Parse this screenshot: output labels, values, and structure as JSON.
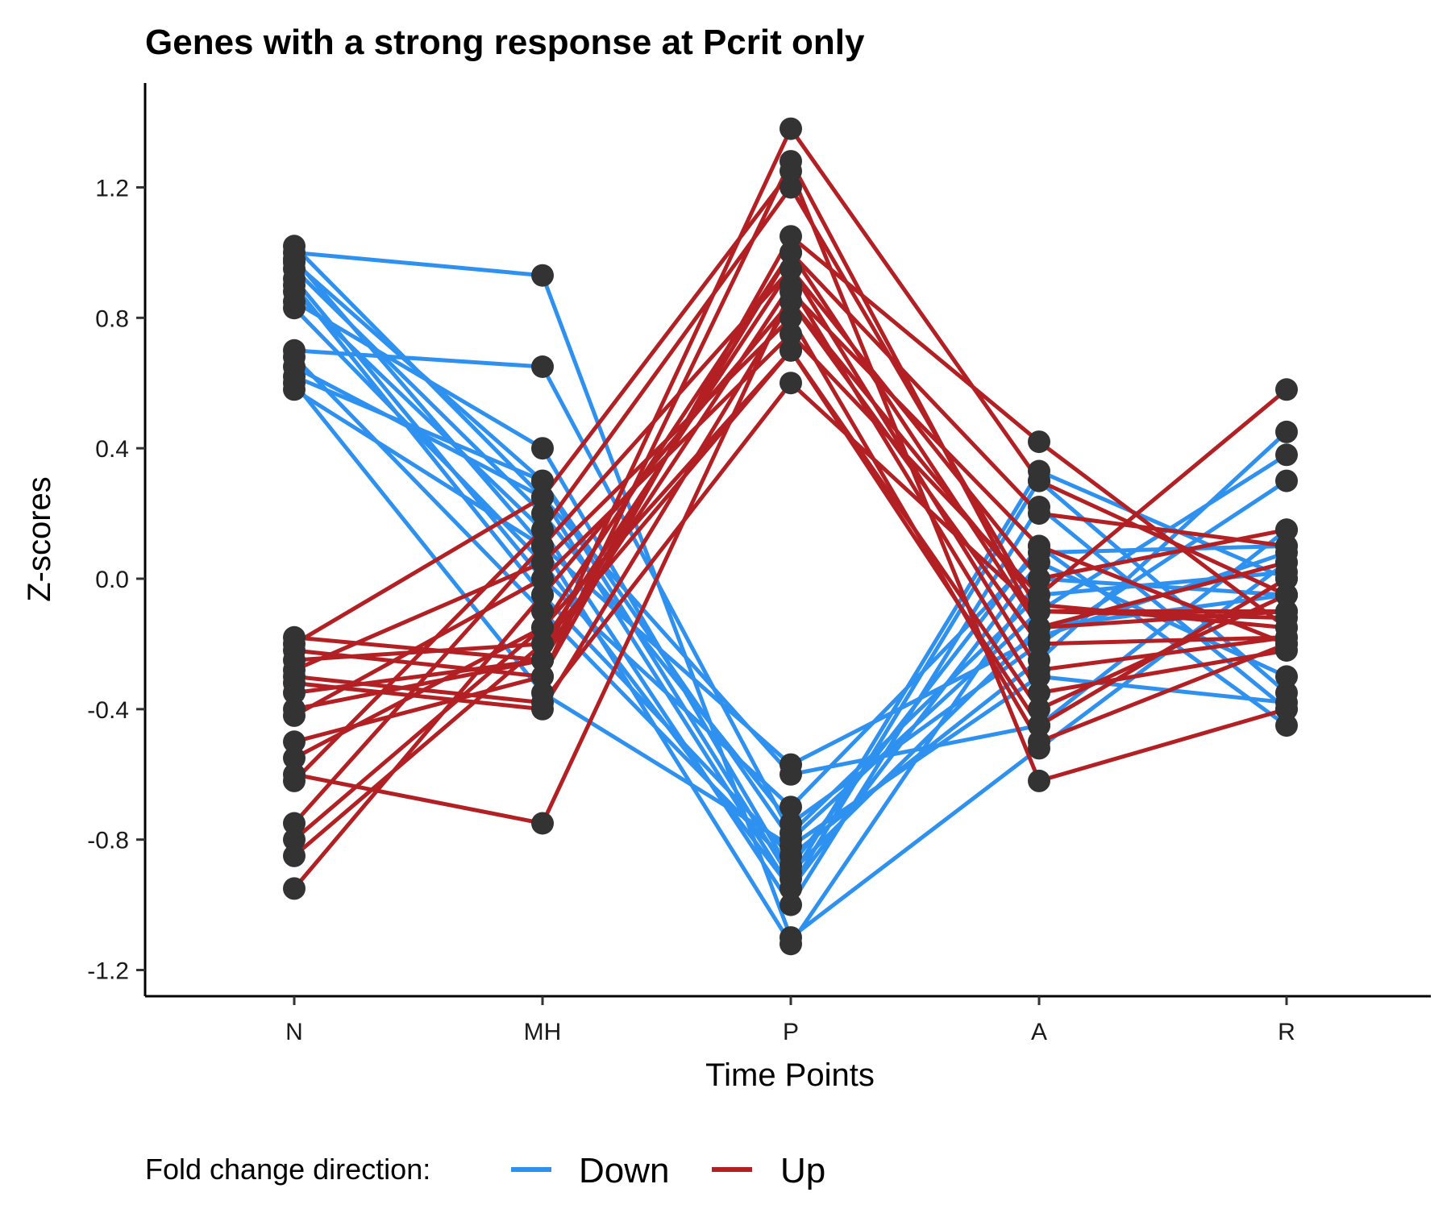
{
  "chart_data": {
    "type": "line",
    "title": "Genes with a strong response at Pcrit only",
    "xlabel": "Time Points",
    "ylabel": "Z-scores",
    "categories": [
      "N",
      "MH",
      "P",
      "A",
      "R"
    ],
    "ylim": [
      -1.3,
      1.5
    ],
    "yticks": [
      -1.2,
      -0.8,
      -0.4,
      0.0,
      0.4,
      0.8,
      1.2
    ],
    "ytick_labels": [
      "-1.2",
      "-0.8",
      "-0.4",
      "0.0",
      "0.4",
      "0.8",
      "1.2"
    ],
    "grid": false,
    "legend": {
      "title": "Fold change direction:",
      "position": "bottom",
      "entries": [
        {
          "name": "Down",
          "color": "#2E91F0"
        },
        {
          "name": "Up",
          "color": "#B22024"
        }
      ]
    },
    "point_color": "#333333",
    "series_groups": [
      {
        "name": "Down",
        "color": "#2E91F0",
        "lines": [
          [
            1.02,
            0.25,
            -0.95,
            0.3,
            -0.35
          ],
          [
            1.0,
            0.93,
            -1.1,
            -0.52,
            0.05
          ],
          [
            0.98,
            0.1,
            -1.12,
            0.0,
            -0.05
          ],
          [
            0.97,
            0.3,
            -0.8,
            -0.1,
            0.38
          ],
          [
            0.95,
            0.2,
            -0.75,
            -0.2,
            0.3
          ],
          [
            0.92,
            0.0,
            -0.7,
            0.08,
            0.1
          ],
          [
            0.9,
            -0.05,
            -0.85,
            -0.25,
            0.45
          ],
          [
            0.88,
            0.15,
            -1.0,
            0.22,
            -0.4
          ],
          [
            0.85,
            0.4,
            -0.9,
            -0.15,
            -0.05
          ],
          [
            0.83,
            0.05,
            -0.95,
            0.05,
            -0.3
          ],
          [
            0.7,
            0.65,
            -0.78,
            -0.05,
            0.02
          ],
          [
            0.68,
            -0.1,
            -0.88,
            0.1,
            -0.45
          ],
          [
            0.65,
            0.25,
            -0.6,
            -0.45,
            0.15
          ],
          [
            0.62,
            0.3,
            -0.92,
            0.33,
            0.0
          ],
          [
            0.6,
            -0.35,
            -0.82,
            -0.3,
            -0.38
          ],
          [
            0.58,
            0.1,
            -0.57,
            -0.18,
            0.08
          ]
        ]
      },
      {
        "name": "Up",
        "color": "#B22024",
        "lines": [
          [
            -0.18,
            -0.25,
            1.38,
            0.3,
            -0.05
          ],
          [
            -0.2,
            0.25,
            1.25,
            -0.62,
            -0.4
          ],
          [
            -0.22,
            -0.3,
            1.05,
            0.42,
            -0.15
          ],
          [
            -0.25,
            -0.2,
            0.95,
            0.0,
            0.15
          ],
          [
            -0.28,
            0.05,
            0.8,
            -0.5,
            -0.2
          ],
          [
            -0.3,
            -0.38,
            0.6,
            -0.1,
            -0.1
          ],
          [
            -0.32,
            -0.4,
            0.85,
            -0.2,
            -0.18
          ],
          [
            -0.35,
            -0.25,
            1.0,
            0.2,
            0.1
          ],
          [
            -0.4,
            -0.25,
            0.9,
            -0.35,
            -0.22
          ],
          [
            -0.42,
            0.0,
            0.75,
            -0.05,
            0.58
          ],
          [
            -0.5,
            -0.3,
            1.28,
            -0.15,
            0.05
          ],
          [
            -0.55,
            -0.15,
            0.7,
            -0.4,
            -0.05
          ],
          [
            -0.6,
            -0.75,
            0.88,
            0.1,
            -0.2
          ],
          [
            -0.62,
            0.15,
            1.2,
            -0.1,
            -0.12
          ],
          [
            -0.75,
            0.1,
            0.95,
            -0.28,
            -0.18
          ],
          [
            -0.8,
            -0.15,
            1.0,
            -0.15,
            -0.1
          ],
          [
            -0.85,
            -0.2,
            0.7,
            -0.45,
            0.0
          ],
          [
            -0.95,
            -0.05,
            0.85,
            -0.08,
            -0.15
          ]
        ]
      }
    ]
  }
}
